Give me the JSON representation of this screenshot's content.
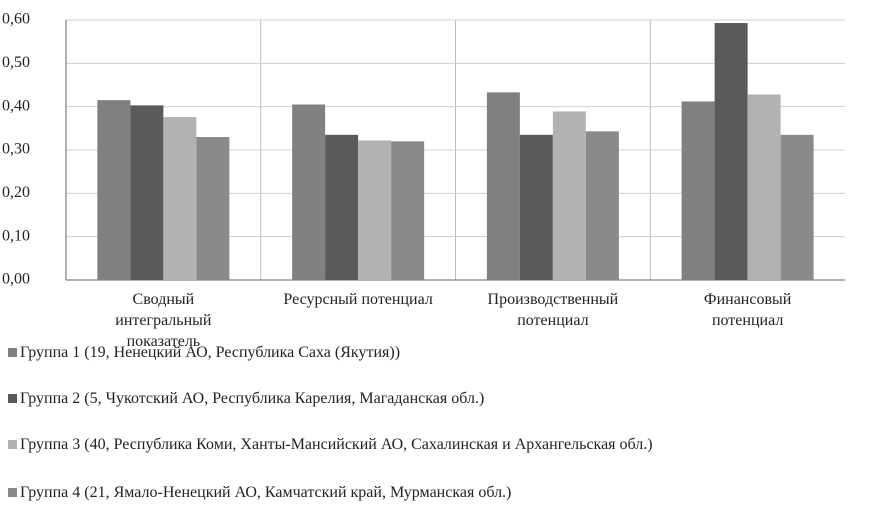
{
  "chart_data": {
    "type": "bar",
    "categories": [
      "Сводный интегральный показатель",
      "Ресурсный потенциал",
      "Производственный потенциал",
      "Финансовый потенциал"
    ],
    "series": [
      {
        "name": "Группа 1 (19, Ненецкий АО, Республика Саха (Якутия))",
        "color": "#808080",
        "values": [
          0.415,
          0.405,
          0.433,
          0.412
        ]
      },
      {
        "name": "Группа 2 (5, Чукотский АО, Республика Карелия, Магаданская обл.)",
        "color": "#5a5a5a",
        "values": [
          0.403,
          0.335,
          0.335,
          0.593
        ]
      },
      {
        "name": "Группа 3 (40, Республика Коми, Ханты-Мансийский АО, Сахалинская и Архангельская обл.)",
        "color": "#b2b2b2",
        "values": [
          0.376,
          0.322,
          0.389,
          0.428
        ]
      },
      {
        "name": "Группа 4 (21, Ямало-Ненецкий АО, Камчатский край, Мурманская обл.)",
        "color": "#8a8a8a",
        "values": [
          0.33,
          0.32,
          0.343,
          0.335
        ]
      }
    ],
    "ylim": [
      0,
      0.6
    ],
    "yticks": [
      {
        "value": 0,
        "label": "0,00"
      },
      {
        "value": 0.1,
        "label": "0,10"
      },
      {
        "value": 0.2,
        "label": "0,20"
      },
      {
        "value": 0.3,
        "label": "0,30"
      },
      {
        "value": 0.4,
        "label": "0,40"
      },
      {
        "value": 0.5,
        "label": "0,50"
      },
      {
        "value": 0.6,
        "label": "0,60"
      }
    ],
    "grid": true
  }
}
